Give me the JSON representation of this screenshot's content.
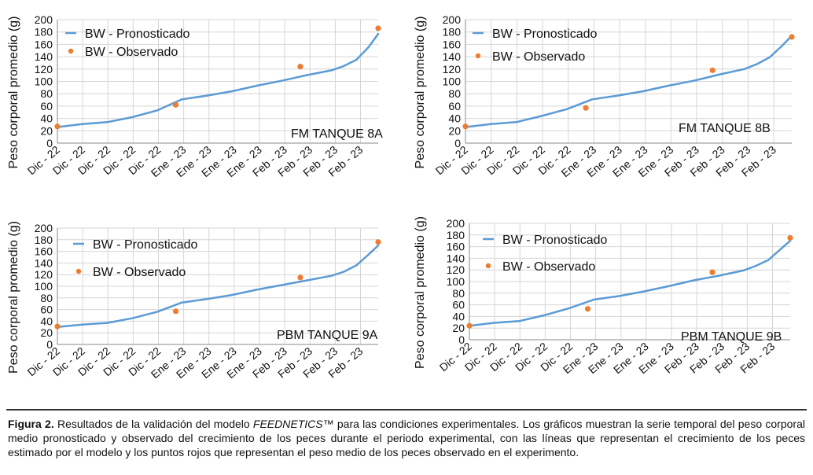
{
  "colors": {
    "line": "#5b9bd5",
    "marker": "#ed7d31",
    "grid": "#d6d6d6",
    "axis": "#888888"
  },
  "chart_data": [
    {
      "type": "line",
      "annotation": "FM TANQUE 8A",
      "ylabel": "Peso corporal promedio (g)",
      "ylim": [
        0,
        200
      ],
      "yticks": [
        0,
        20,
        40,
        60,
        80,
        100,
        120,
        140,
        160,
        180,
        200
      ],
      "xticks": [
        "Dic - 22",
        "Dic - 22",
        "Dic - 22",
        "Dic - 22",
        "Dic - 22",
        "Ene - 23",
        "Ene - 23",
        "Ene - 23",
        "Ene - 23",
        "Feb - 23",
        "Feb - 23",
        "Feb - 23",
        "Feb - 23"
      ],
      "xlim": [
        0,
        103
      ],
      "legend": [
        "BW - Pronosticado",
        "BW - Observado"
      ],
      "series": [
        {
          "name": "BW - Pronosticado",
          "kind": "line",
          "x": [
            0,
            8,
            16,
            24,
            32,
            40,
            48,
            56,
            64,
            72,
            80,
            88,
            92,
            96,
            100,
            103
          ],
          "y": [
            26,
            31,
            34,
            42,
            53,
            71,
            77,
            84,
            93,
            101,
            110,
            118,
            125,
            135,
            156,
            177
          ]
        },
        {
          "name": "BW - Observado",
          "kind": "scatter",
          "x": [
            0,
            38,
            78,
            103
          ],
          "y": [
            27,
            62,
            124,
            186
          ]
        }
      ]
    },
    {
      "type": "line",
      "annotation": "FM TANQUE 8B",
      "ylabel": "Peso corporal promedio (g)",
      "ylim": [
        0,
        200
      ],
      "yticks": [
        0,
        20,
        40,
        60,
        80,
        100,
        120,
        140,
        160,
        180,
        200
      ],
      "xticks": [
        "Dic - 22",
        "Dic - 22",
        "Dic - 22",
        "Dic - 22",
        "Dic - 22",
        "Ene - 23",
        "Ene - 23",
        "Ene - 23",
        "Ene - 23",
        "Feb - 23",
        "Feb - 23",
        "Feb - 23",
        "Feb - 23"
      ],
      "xlim": [
        0,
        103
      ],
      "legend": [
        "BW - Pronosticado",
        "BW - Observado"
      ],
      "series": [
        {
          "name": "BW - Pronosticado",
          "kind": "line",
          "x": [
            0,
            8,
            16,
            24,
            32,
            40,
            48,
            56,
            64,
            72,
            80,
            88,
            92,
            96,
            100,
            103
          ],
          "y": [
            26,
            31,
            34,
            44,
            55,
            71,
            77,
            84,
            93,
            101,
            111,
            120,
            128,
            139,
            158,
            174
          ]
        },
        {
          "name": "BW - Observado",
          "kind": "scatter",
          "x": [
            0,
            38,
            78,
            103
          ],
          "y": [
            27,
            57,
            118,
            172
          ]
        }
      ]
    },
    {
      "type": "line",
      "annotation": "PBM TANQUE 9A",
      "ylabel": "Peso corporal promedio (g)",
      "ylim": [
        0,
        200
      ],
      "yticks": [
        0,
        20,
        40,
        60,
        80,
        100,
        120,
        140,
        160,
        180,
        200
      ],
      "xticks": [
        "Dic - 22",
        "Dic - 22",
        "Dic - 22",
        "Dic - 22",
        "Dic - 22",
        "Ene - 23",
        "Ene - 23",
        "Ene - 23",
        "Ene - 23",
        "Feb - 23",
        "Feb - 23",
        "Feb - 23",
        "Feb - 23"
      ],
      "xlim": [
        0,
        103
      ],
      "legend": [
        "BW - Pronosticado",
        "BW - Observado"
      ],
      "series": [
        {
          "name": "BW - Pronosticado",
          "kind": "line",
          "x": [
            0,
            8,
            16,
            24,
            32,
            40,
            48,
            56,
            64,
            72,
            80,
            88,
            92,
            96,
            100,
            103
          ],
          "y": [
            30,
            34,
            37,
            45,
            56,
            72,
            78,
            85,
            94,
            102,
            110,
            118,
            125,
            136,
            155,
            170
          ]
        },
        {
          "name": "BW - Observado",
          "kind": "scatter",
          "x": [
            0,
            38,
            78,
            103
          ],
          "y": [
            31,
            57,
            115,
            176
          ]
        }
      ]
    },
    {
      "type": "line",
      "annotation": "PBM TANQUE 9B",
      "ylabel": "Peso corporal promedio (g)",
      "ylim": [
        0,
        200
      ],
      "yticks": [
        0,
        20,
        40,
        60,
        80,
        100,
        120,
        140,
        160,
        180,
        200
      ],
      "xticks": [
        "Dic - 22",
        "Dic - 22",
        "Dic - 22",
        "Dic - 22",
        "Dic - 22",
        "Ene - 23",
        "Ene - 23",
        "Ene - 23",
        "Ene - 23",
        "Feb - 23",
        "Feb - 23",
        "Feb - 23",
        "Feb - 23"
      ],
      "xlim": [
        0,
        103
      ],
      "legend": [
        "BW - Pronosticado",
        "BW - Observado"
      ],
      "series": [
        {
          "name": "BW - Pronosticado",
          "kind": "line",
          "x": [
            0,
            8,
            16,
            24,
            32,
            40,
            48,
            56,
            64,
            72,
            80,
            88,
            92,
            96,
            100,
            103
          ],
          "y": [
            24,
            29,
            32,
            42,
            54,
            69,
            75,
            83,
            92,
            102,
            110,
            119,
            127,
            137,
            156,
            170
          ]
        },
        {
          "name": "BW - Observado",
          "kind": "scatter",
          "x": [
            0,
            38,
            78,
            103
          ],
          "y": [
            24,
            53,
            116,
            175
          ]
        }
      ]
    }
  ],
  "caption": {
    "label": "Figura 2.",
    "part1": " Resultados de la validación del modelo ",
    "italic": "FEEDNETICS™",
    "part2": " para las condiciones experimentales. Los gráficos muestran la serie temporal del peso corporal medio pronosticado y observado del crecimiento de los peces durante el periodo experimental, con las líneas que representan el crecimiento de los peces estimado por el modelo y los puntos rojos que representan el peso medio de los peces observado en el experimento."
  }
}
